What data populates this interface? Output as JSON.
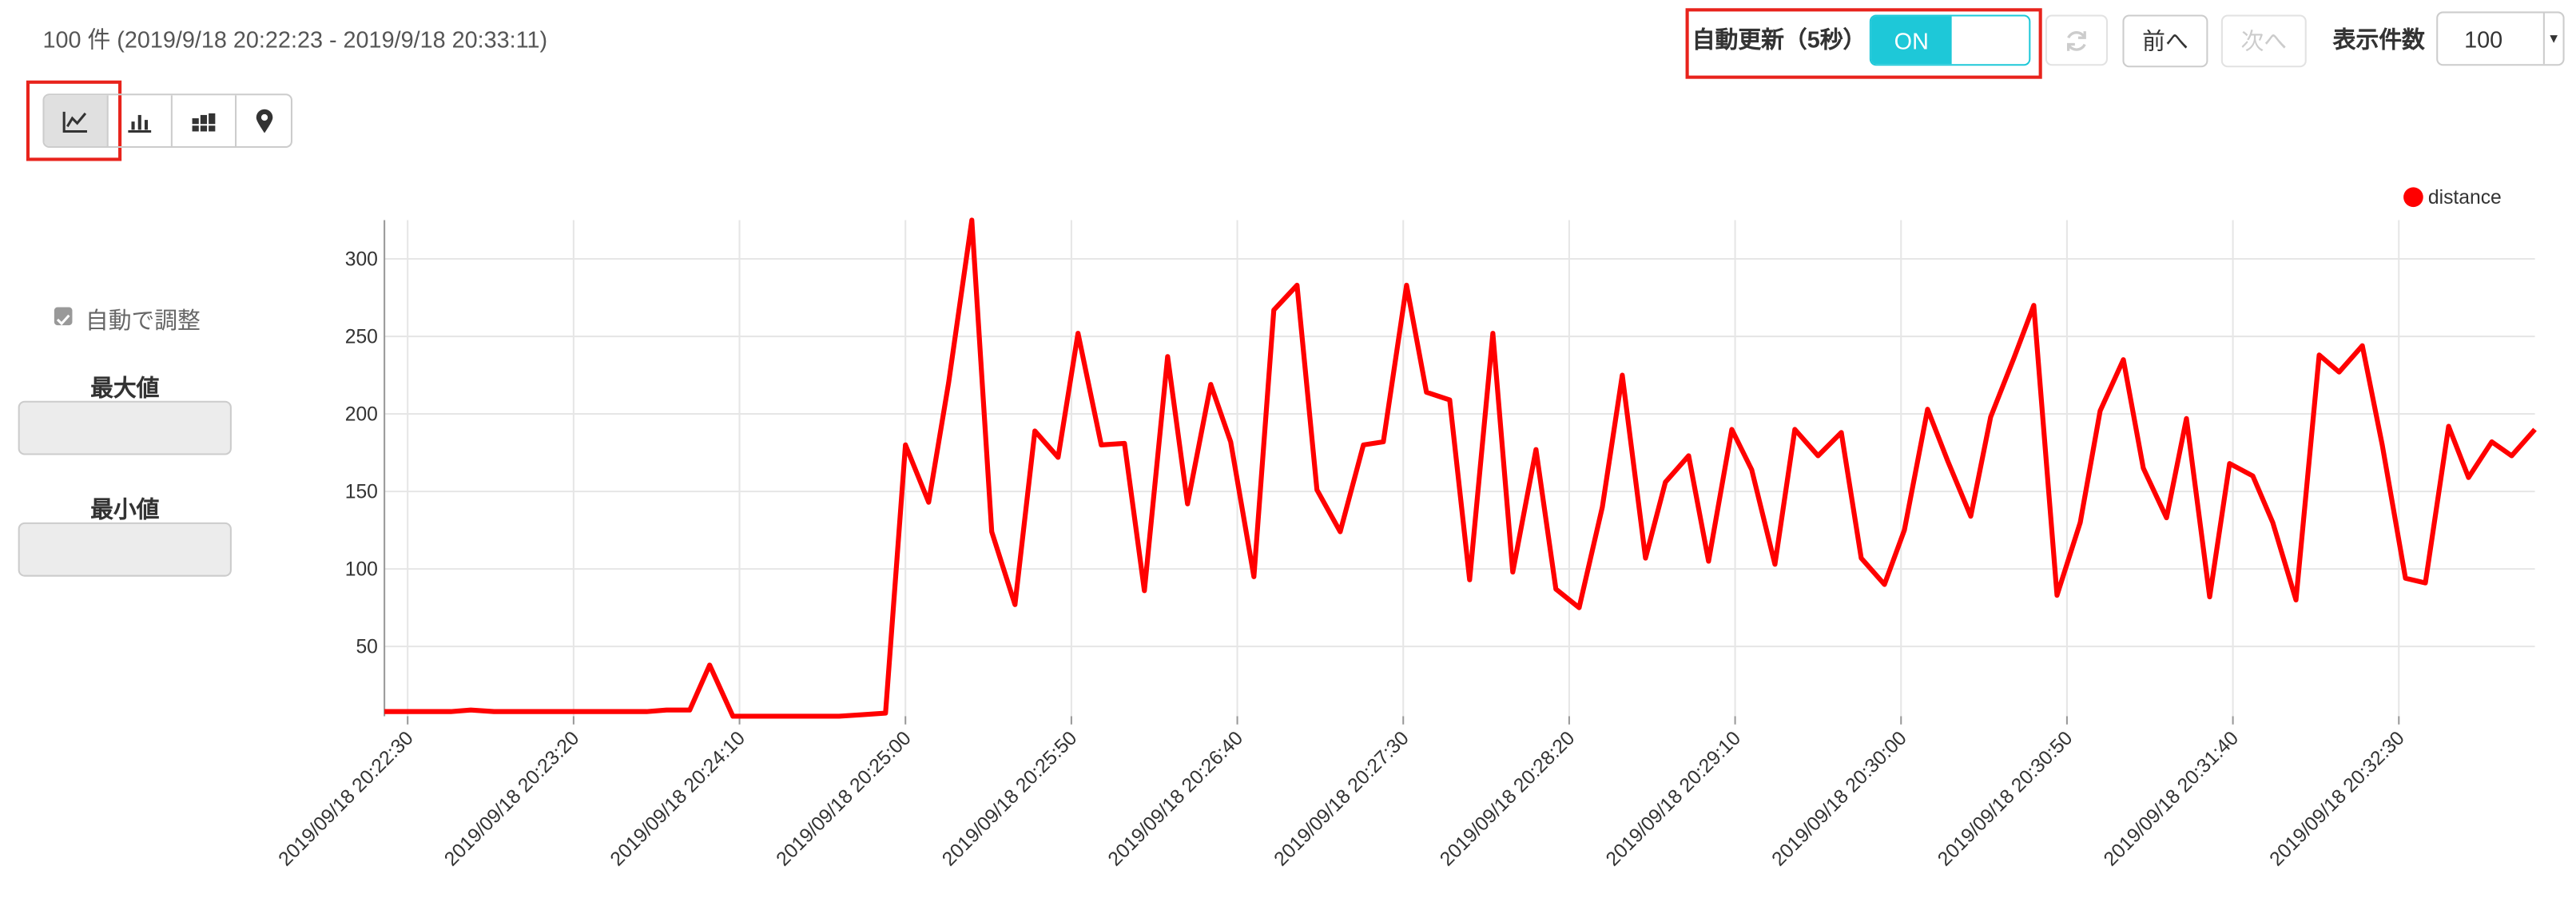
{
  "header": {
    "count_label": "100 件 (2019/9/18 20:22:23 - 2019/9/18 20:33:11)"
  },
  "toolbar": {
    "auto_refresh_label": "自動更新（5秒）",
    "toggle_on": "ON",
    "prev": "前へ",
    "next": "次へ",
    "page_size_label": "表示件数",
    "page_size": "100"
  },
  "sidebar": {
    "auto_adjust": "自動で調整",
    "max_label": "最大値",
    "min_label": "最小値"
  },
  "chart_data": {
    "type": "line",
    "x": [
      "2019/09/18 20:22:23",
      "2019/09/18 20:22:30",
      "2019/09/18 20:22:36",
      "2019/09/18 20:22:43",
      "2019/09/18 20:22:49",
      "2019/09/18 20:22:56",
      "2019/09/18 20:23:02",
      "2019/09/18 20:23:09",
      "2019/09/18 20:23:15",
      "2019/09/18 20:23:22",
      "2019/09/18 20:23:28",
      "2019/09/18 20:23:35",
      "2019/09/18 20:23:42",
      "2019/09/18 20:23:48",
      "2019/09/18 20:23:55",
      "2019/09/18 20:24:01",
      "2019/09/18 20:24:08",
      "2019/09/18 20:24:14",
      "2019/09/18 20:24:21",
      "2019/09/18 20:24:27",
      "2019/09/18 20:24:34",
      "2019/09/18 20:24:40",
      "2019/09/18 20:24:47",
      "2019/09/18 20:24:54",
      "2019/09/18 20:25:00",
      "2019/09/18 20:25:07",
      "2019/09/18 20:25:13",
      "2019/09/18 20:25:20",
      "2019/09/18 20:25:26",
      "2019/09/18 20:25:33",
      "2019/09/18 20:25:39",
      "2019/09/18 20:25:46",
      "2019/09/18 20:25:52",
      "2019/09/18 20:25:59",
      "2019/09/18 20:26:06",
      "2019/09/18 20:26:12",
      "2019/09/18 20:26:19",
      "2019/09/18 20:26:25",
      "2019/09/18 20:26:32",
      "2019/09/18 20:26:38",
      "2019/09/18 20:26:45",
      "2019/09/18 20:26:51",
      "2019/09/18 20:26:58",
      "2019/09/18 20:27:04",
      "2019/09/18 20:27:11",
      "2019/09/18 20:27:18",
      "2019/09/18 20:27:24",
      "2019/09/18 20:27:31",
      "2019/09/18 20:27:37",
      "2019/09/18 20:27:44",
      "2019/09/18 20:27:50",
      "2019/09/18 20:27:57",
      "2019/09/18 20:28:03",
      "2019/09/18 20:28:10",
      "2019/09/18 20:28:16",
      "2019/09/18 20:28:23",
      "2019/09/18 20:28:30",
      "2019/09/18 20:28:36",
      "2019/09/18 20:28:43",
      "2019/09/18 20:28:49",
      "2019/09/18 20:28:56",
      "2019/09/18 20:29:02",
      "2019/09/18 20:29:09",
      "2019/09/18 20:29:15",
      "2019/09/18 20:29:22",
      "2019/09/18 20:29:28",
      "2019/09/18 20:29:35",
      "2019/09/18 20:29:42",
      "2019/09/18 20:29:48",
      "2019/09/18 20:29:55",
      "2019/09/18 20:30:01",
      "2019/09/18 20:30:08",
      "2019/09/18 20:30:14",
      "2019/09/18 20:30:21",
      "2019/09/18 20:30:27",
      "2019/09/18 20:30:34",
      "2019/09/18 20:30:40",
      "2019/09/18 20:30:47",
      "2019/09/18 20:30:54",
      "2019/09/18 20:31:00",
      "2019/09/18 20:31:07",
      "2019/09/18 20:31:13",
      "2019/09/18 20:31:20",
      "2019/09/18 20:31:26",
      "2019/09/18 20:31:33",
      "2019/09/18 20:31:39",
      "2019/09/18 20:31:46",
      "2019/09/18 20:31:52",
      "2019/09/18 20:31:59",
      "2019/09/18 20:32:06",
      "2019/09/18 20:32:12",
      "2019/09/18 20:32:19",
      "2019/09/18 20:32:25",
      "2019/09/18 20:32:32",
      "2019/09/18 20:32:38",
      "2019/09/18 20:32:45",
      "2019/09/18 20:32:51",
      "2019/09/18 20:32:58",
      "2019/09/18 20:33:04",
      "2019/09/18 20:33:11"
    ],
    "series": [
      {
        "name": "distance",
        "color": "#ff0000",
        "values": [
          8,
          8,
          8,
          8,
          9,
          8,
          8,
          8,
          8,
          8,
          8,
          8,
          8,
          9,
          9,
          38,
          5,
          5,
          5,
          5,
          5,
          5,
          6,
          7,
          180,
          143,
          220,
          325,
          124,
          77,
          189,
          172,
          252,
          180,
          181,
          86,
          237,
          142,
          219,
          182,
          95,
          267,
          283,
          151,
          124,
          180,
          182,
          283,
          214,
          209,
          93,
          252,
          98,
          177,
          87,
          75,
          140,
          225,
          107,
          156,
          173,
          105,
          190,
          164,
          103,
          190,
          173,
          188,
          107,
          90,
          125,
          203,
          170,
          134,
          198,
          236,
          270,
          83,
          130,
          202,
          235,
          165,
          133,
          197,
          82,
          168,
          160,
          130,
          80,
          238,
          227,
          244,
          180,
          94,
          91,
          192,
          159,
          182,
          173,
          190
        ]
      }
    ],
    "xlim": [
      "2019/09/18 20:22:23",
      "2019/09/18 20:33:11"
    ],
    "xticks": [
      "2019/09/18 20:22:30",
      "2019/09/18 20:23:20",
      "2019/09/18 20:24:10",
      "2019/09/18 20:25:00",
      "2019/09/18 20:25:50",
      "2019/09/18 20:26:40",
      "2019/09/18 20:27:30",
      "2019/09/18 20:28:20",
      "2019/09/18 20:29:10",
      "2019/09/18 20:30:00",
      "2019/09/18 20:30:50",
      "2019/09/18 20:31:40",
      "2019/09/18 20:32:30"
    ],
    "ylim": [
      5,
      325
    ],
    "yticks": [
      50,
      100,
      150,
      200,
      250,
      300
    ],
    "grid": true,
    "legend": "top-right"
  }
}
